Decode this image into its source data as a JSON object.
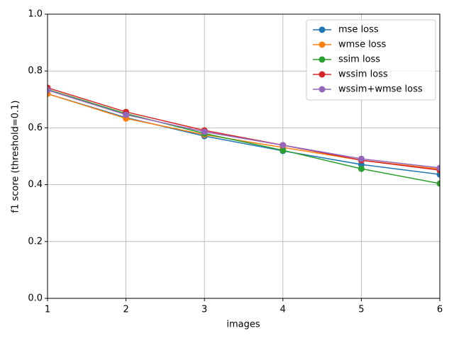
{
  "chart_data": {
    "type": "line",
    "x_label": "images",
    "y_label": "f1 score (threshold=0.1)",
    "x": [
      1,
      2,
      3,
      4,
      5,
      6
    ],
    "series": [
      {
        "name": "mse loss",
        "color": "#1f77b4",
        "values": [
          0.72,
          0.636,
          0.571,
          0.519,
          0.471,
          0.436
        ]
      },
      {
        "name": "wmse loss",
        "color": "#ff7f0e",
        "values": [
          0.72,
          0.633,
          0.576,
          0.531,
          0.486,
          0.455
        ]
      },
      {
        "name": "ssim loss",
        "color": "#2ca02c",
        "values": [
          0.735,
          0.65,
          0.58,
          0.521,
          0.456,
          0.404
        ]
      },
      {
        "name": "wssim loss",
        "color": "#d62728",
        "values": [
          0.741,
          0.656,
          0.591,
          0.539,
          0.486,
          0.451
        ]
      },
      {
        "name": "wssim+wmse loss",
        "color": "#9467bd",
        "values": [
          0.733,
          0.646,
          0.586,
          0.539,
          0.491,
          0.459
        ]
      }
    ],
    "xlim": [
      1,
      6
    ],
    "xticks": [
      1,
      2,
      3,
      4,
      5,
      6
    ],
    "ylim": [
      0,
      1
    ],
    "yticks": [
      {
        "value": 0,
        "label": "0.0"
      },
      {
        "value": 0.2,
        "label": "0.2"
      },
      {
        "value": 0.4,
        "label": "0.4"
      },
      {
        "value": 0.6,
        "label": "0.6"
      },
      {
        "value": 0.8,
        "label": "0.8"
      },
      {
        "value": 1,
        "label": "1.0"
      }
    ],
    "grid": true,
    "legend": "upper right"
  }
}
